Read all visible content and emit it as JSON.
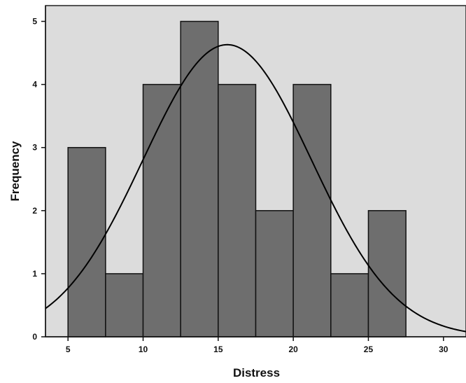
{
  "chart_data": {
    "type": "bar",
    "subtype": "histogram",
    "title": "",
    "xlabel": "Distress",
    "ylabel": "Frequency",
    "bins": [
      {
        "start": 5,
        "end": 7.5,
        "count": 3
      },
      {
        "start": 7.5,
        "end": 10,
        "count": 1
      },
      {
        "start": 10,
        "end": 12.5,
        "count": 4
      },
      {
        "start": 12.5,
        "end": 15,
        "count": 5
      },
      {
        "start": 15,
        "end": 17.5,
        "count": 4
      },
      {
        "start": 17.5,
        "end": 20,
        "count": 2
      },
      {
        "start": 20,
        "end": 22.5,
        "count": 4
      },
      {
        "start": 22.5,
        "end": 25,
        "count": 1
      },
      {
        "start": 25,
        "end": 27.5,
        "count": 2
      }
    ],
    "xlim": [
      3.5,
      31.5
    ],
    "ylim": [
      0,
      5.25
    ],
    "x_ticks": [
      5,
      10,
      15,
      20,
      25,
      30
    ],
    "y_ticks": [
      0,
      1,
      2,
      3,
      4,
      5
    ],
    "normal_curve": {
      "mean": 15.6,
      "sd": 5.6,
      "n": 26,
      "bin_width": 2.5
    },
    "grid": false,
    "legend": "none",
    "colors": {
      "plot_background": "#dcdcdc",
      "bar_fill": "#6e6e6e",
      "bar_stroke": "#111111",
      "curve": "#000000"
    }
  }
}
